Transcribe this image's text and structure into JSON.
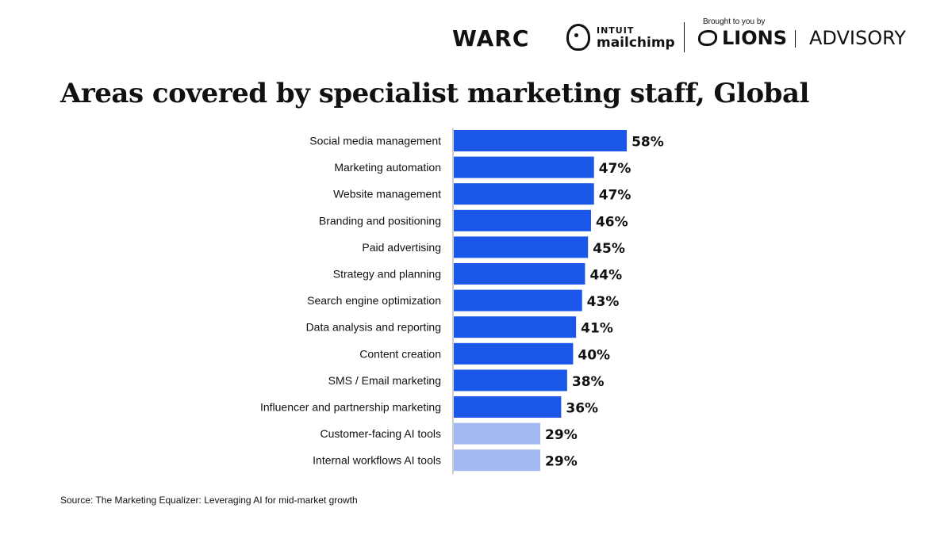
{
  "logos": {
    "warc": "WARC",
    "mailchimp_line1": "INTUIT",
    "mailchimp_line2": "mailchimp",
    "brought_by": "Brought to you by",
    "lions": "LIONS",
    "advisory": "ADVISORY"
  },
  "title": "Areas covered by specialist marketing staff, Global",
  "source": "Source: The Marketing Equalizer: Leveraging AI for mid-market growth",
  "colors": {
    "primary_bar": "#1a56e8",
    "ai_bar": "#a3b9f2",
    "axis": "#999999",
    "text": "#111111"
  },
  "chart_data": {
    "type": "bar",
    "orientation": "horizontal",
    "categories": [
      "Social media management",
      "Marketing automation",
      "Website management",
      "Branding and positioning",
      "Paid advertising",
      "Strategy and planning",
      "Search engine optimization",
      "Data analysis and reporting",
      "Content creation",
      "SMS / Email marketing",
      "Influencer and partnership marketing",
      "Customer-facing AI tools",
      "Internal workflows AI tools"
    ],
    "values": [
      58,
      47,
      47,
      46,
      45,
      44,
      43,
      41,
      40,
      38,
      36,
      29,
      29
    ],
    "value_labels": [
      "58%",
      "47%",
      "47%",
      "46%",
      "45%",
      "44%",
      "43%",
      "41%",
      "40%",
      "38%",
      "36%",
      "29%",
      "29%"
    ],
    "highlight": [
      "primary",
      "primary",
      "primary",
      "primary",
      "primary",
      "primary",
      "primary",
      "primary",
      "primary",
      "primary",
      "primary",
      "ai",
      "ai"
    ],
    "unit": "%",
    "xlim": [
      0,
      100
    ],
    "grid": false,
    "legend": "none"
  }
}
